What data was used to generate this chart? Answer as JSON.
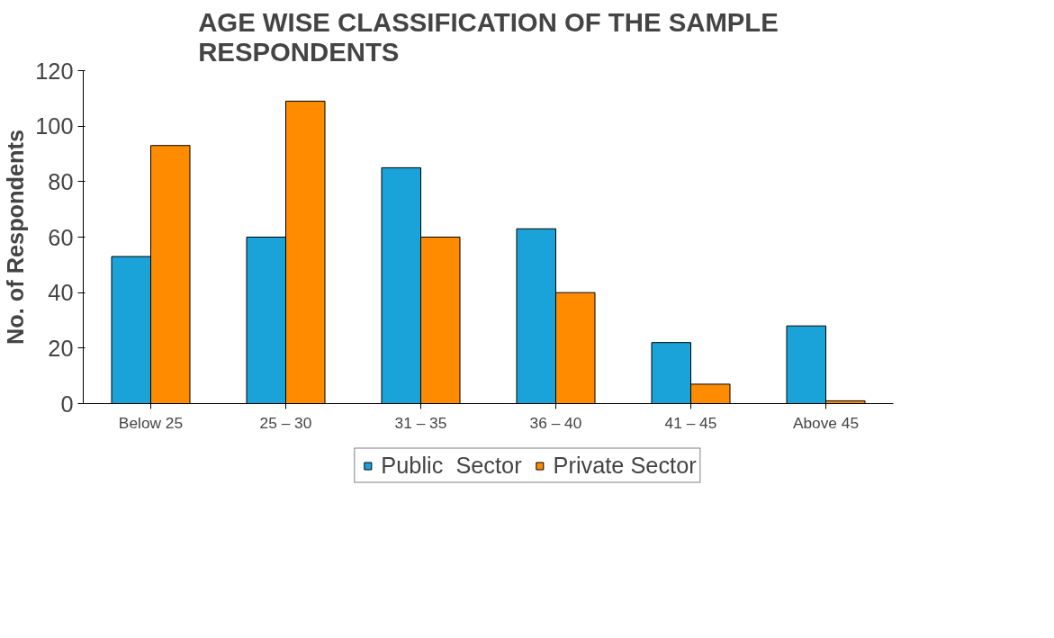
{
  "chart_data": {
    "type": "bar",
    "title": "AGE WISE CLASSIFICATION OF THE SAMPLE\nRESPONDENTS",
    "ylabel": "No. of Respondents",
    "categories": [
      "Below 25",
      "25 – 30",
      "31 – 35",
      "36 – 40",
      "41 – 45",
      "Above 45"
    ],
    "series": [
      {
        "name": "Public  Sector",
        "color": "#1aa3d9",
        "values": [
          53,
          60,
          85,
          63,
          22,
          28
        ]
      },
      {
        "name": "Private Sector",
        "color": "#ff8c00",
        "values": [
          93,
          109,
          60,
          40,
          7,
          1
        ]
      }
    ],
    "ylim": [
      0,
      120
    ],
    "yticks": [
      0,
      20,
      40,
      60,
      80,
      100,
      120
    ],
    "grid": false,
    "legend": "bottom"
  }
}
